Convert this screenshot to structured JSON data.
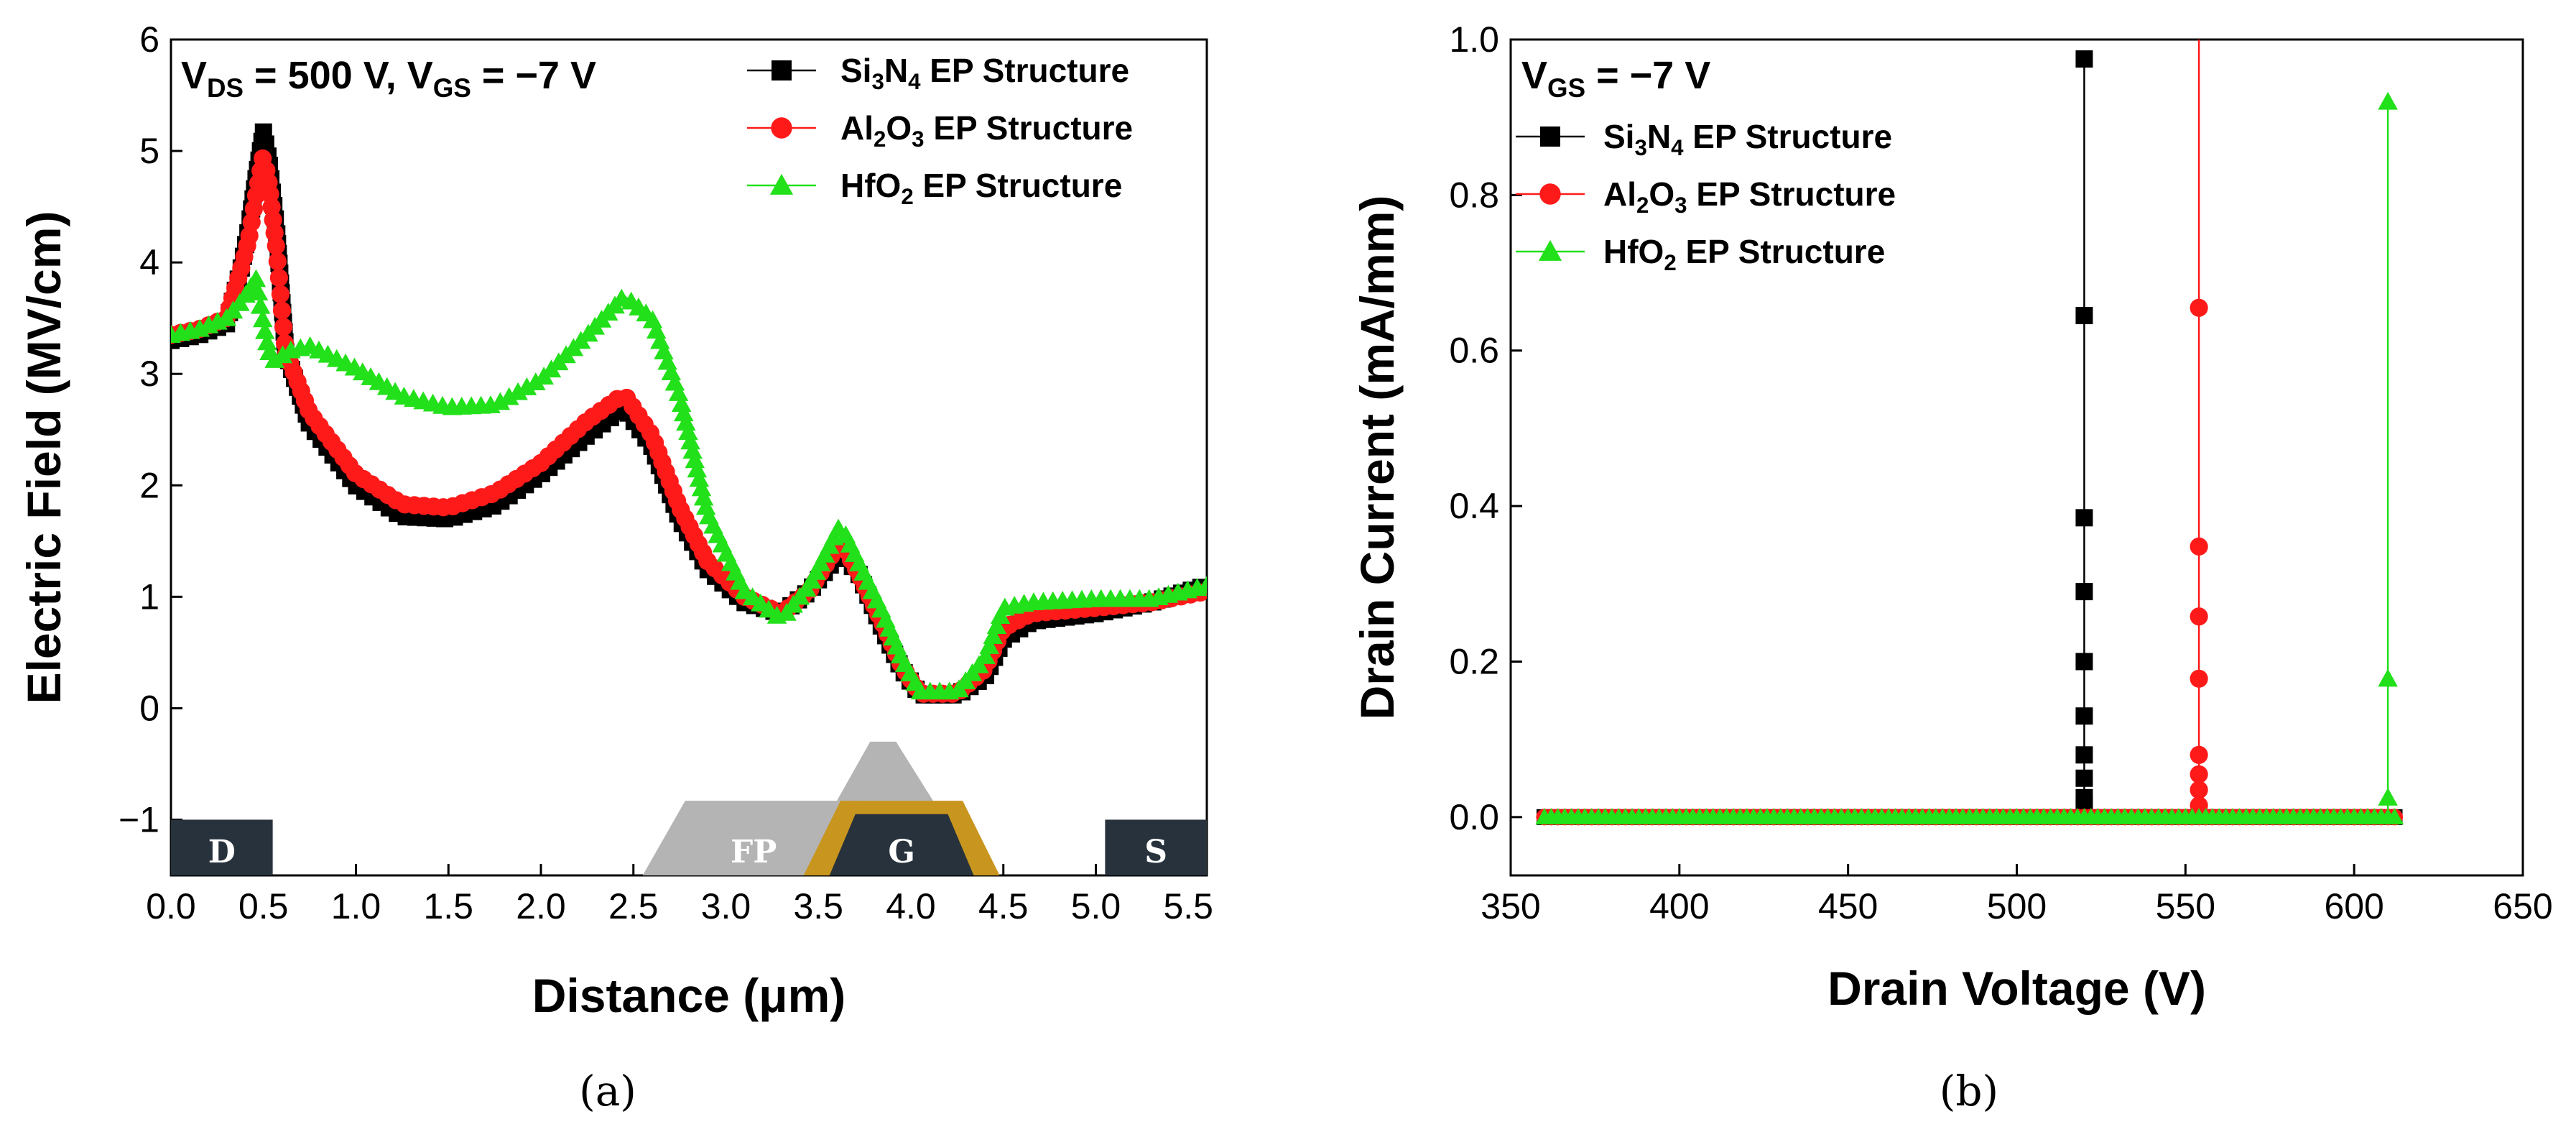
{
  "colors": {
    "si3n4": "#000000",
    "al2o3": "#ff1a1a",
    "hfo2": "#22e01a",
    "device_dark": "#27323c",
    "device_fp": "#b4b4b4",
    "device_gold": "#c8951e"
  },
  "chart_data": [
    {
      "panel": "(a)",
      "type": "line",
      "xlabel": "Distance (μm)",
      "ylabel": "Electric Field (MV/cm)",
      "xlim": [
        0.0,
        5.6
      ],
      "ylim": [
        -1.5,
        6.0
      ],
      "xticks": [
        "0.0",
        "0.5",
        "1.0",
        "1.5",
        "2.0",
        "2.5",
        "3.0",
        "3.5",
        "4.0",
        "4.5",
        "5.0",
        "5.5"
      ],
      "yticks": [
        "−1",
        "0",
        "1",
        "2",
        "3",
        "4",
        "5",
        "6"
      ],
      "grid": false,
      "legend_position": "top-right",
      "condition": {
        "main": "V",
        "sub1": "DS",
        "mid": " = 500 V, V",
        "sub2": "GS",
        "tail": " = −7 V"
      },
      "device_labels": {
        "drain": "D",
        "field_plate": "FP",
        "gate": "G",
        "source": "S"
      },
      "series": [
        {
          "name": {
            "a": "Si",
            "s1": "3",
            "b": "N",
            "s2": "4",
            "c": " EP Structure"
          },
          "color_key": "si3n4",
          "marker": "square",
          "x": [
            0.0,
            0.15,
            0.3,
            0.38,
            0.42,
            0.46,
            0.5,
            0.53,
            0.57,
            0.62,
            0.75,
            1.0,
            1.25,
            1.5,
            1.75,
            2.0,
            2.25,
            2.45,
            2.6,
            2.75,
            2.9,
            3.1,
            3.3,
            3.45,
            3.62,
            3.72,
            3.85,
            3.95,
            4.05,
            4.25,
            4.4,
            4.5,
            4.65,
            5.0,
            5.3,
            5.6
          ],
          "y": [
            3.3,
            3.35,
            3.45,
            3.95,
            4.3,
            4.75,
            5.17,
            4.9,
            4.3,
            3.2,
            2.55,
            2.0,
            1.72,
            1.7,
            1.82,
            2.1,
            2.45,
            2.7,
            2.35,
            1.7,
            1.25,
            0.95,
            0.85,
            1.05,
            1.4,
            1.2,
            0.7,
            0.35,
            0.12,
            0.12,
            0.28,
            0.62,
            0.78,
            0.85,
            0.95,
            1.1
          ]
        },
        {
          "name": {
            "a": "Al",
            "s1": "2",
            "b": "O",
            "s2": "3",
            "c": " EP Structure"
          },
          "color_key": "al2o3",
          "marker": "circle",
          "x": [
            0.0,
            0.15,
            0.3,
            0.38,
            0.42,
            0.46,
            0.5,
            0.53,
            0.57,
            0.62,
            0.75,
            1.0,
            1.25,
            1.5,
            1.75,
            2.0,
            2.25,
            2.45,
            2.6,
            2.75,
            2.9,
            3.1,
            3.3,
            3.45,
            3.62,
            3.72,
            3.85,
            3.95,
            4.05,
            4.25,
            4.4,
            4.5,
            4.65,
            5.0,
            5.3,
            5.6
          ],
          "y": [
            3.35,
            3.4,
            3.5,
            3.95,
            4.2,
            4.6,
            4.97,
            4.7,
            4.12,
            3.2,
            2.65,
            2.1,
            1.83,
            1.8,
            1.93,
            2.2,
            2.58,
            2.82,
            2.45,
            1.8,
            1.32,
            1.0,
            0.85,
            1.05,
            1.5,
            1.2,
            0.75,
            0.38,
            0.13,
            0.13,
            0.35,
            0.72,
            0.85,
            0.9,
            0.95,
            1.05
          ]
        },
        {
          "name": {
            "a": "HfO",
            "s1": "2",
            "b": "",
            "s2": "",
            "c": " EP Structure"
          },
          "color_key": "hfo2",
          "marker": "triangle",
          "x": [
            0.0,
            0.15,
            0.3,
            0.38,
            0.42,
            0.46,
            0.5,
            0.53,
            0.57,
            0.62,
            0.75,
            1.0,
            1.25,
            1.5,
            1.75,
            2.0,
            2.25,
            2.45,
            2.6,
            2.75,
            2.9,
            3.1,
            3.3,
            3.45,
            3.62,
            3.72,
            3.85,
            3.95,
            4.05,
            4.25,
            4.4,
            4.5,
            4.65,
            5.0,
            5.3,
            5.6
          ],
          "y": [
            3.35,
            3.4,
            3.5,
            3.65,
            3.75,
            3.85,
            3.45,
            3.2,
            3.1,
            3.2,
            3.25,
            3.05,
            2.8,
            2.7,
            2.72,
            2.95,
            3.35,
            3.7,
            3.5,
            2.8,
            1.75,
            1.05,
            0.8,
            1.1,
            1.65,
            1.3,
            0.85,
            0.45,
            0.15,
            0.15,
            0.45,
            0.9,
            0.95,
            0.98,
            0.98,
            1.1
          ]
        }
      ]
    },
    {
      "panel": "(b)",
      "type": "scatter",
      "xlabel": "Drain Voltage (V)",
      "ylabel": "Drain Current (mA/mm)",
      "xlim": [
        350,
        650
      ],
      "ylim": [
        -0.075,
        1.0
      ],
      "xticks": [
        "350",
        "400",
        "450",
        "500",
        "550",
        "600",
        "650"
      ],
      "yticks": [
        "0.0",
        "0.2",
        "0.4",
        "0.6",
        "0.8",
        "1.0"
      ],
      "grid": false,
      "legend_position": "top-left",
      "condition": {
        "main": "V",
        "sub1": "GS",
        "mid": " = −7 V",
        "sub2": "",
        "tail": ""
      },
      "series": [
        {
          "name": {
            "a": "Si",
            "s1": "3",
            "b": "N",
            "s2": "4",
            "c": " EP Structure"
          },
          "color_key": "si3n4",
          "marker": "square",
          "baseline_x": [
            360,
            612
          ],
          "breakdown_x": 520,
          "x": [
            520,
            520,
            520,
            520,
            520,
            520,
            520,
            520,
            520,
            520
          ],
          "y": [
            0.015,
            0.025,
            0.05,
            0.08,
            0.13,
            0.2,
            0.29,
            0.385,
            0.645,
            0.975
          ]
        },
        {
          "name": {
            "a": "Al",
            "s1": "2",
            "b": "O",
            "s2": "3",
            "c": " EP Structure"
          },
          "color_key": "al2o3",
          "marker": "circle",
          "baseline_x": [
            360,
            612
          ],
          "breakdown_x": 554,
          "line_top": 1.0,
          "x": [
            554,
            554,
            554,
            554,
            554,
            554,
            554,
            554,
            554
          ],
          "y": [
            0.015,
            0.035,
            0.055,
            0.08,
            0.178,
            0.258,
            0.348,
            0.655,
            1.0
          ]
        },
        {
          "name": {
            "a": "HfO",
            "s1": "2",
            "b": "",
            "s2": "",
            "c": " EP Structure"
          },
          "color_key": "hfo2",
          "marker": "triangle",
          "baseline_x": [
            360,
            612
          ],
          "breakdown_x": 610,
          "x": [
            610,
            610,
            610
          ],
          "y": [
            0.025,
            0.178,
            0.92
          ]
        }
      ]
    }
  ]
}
